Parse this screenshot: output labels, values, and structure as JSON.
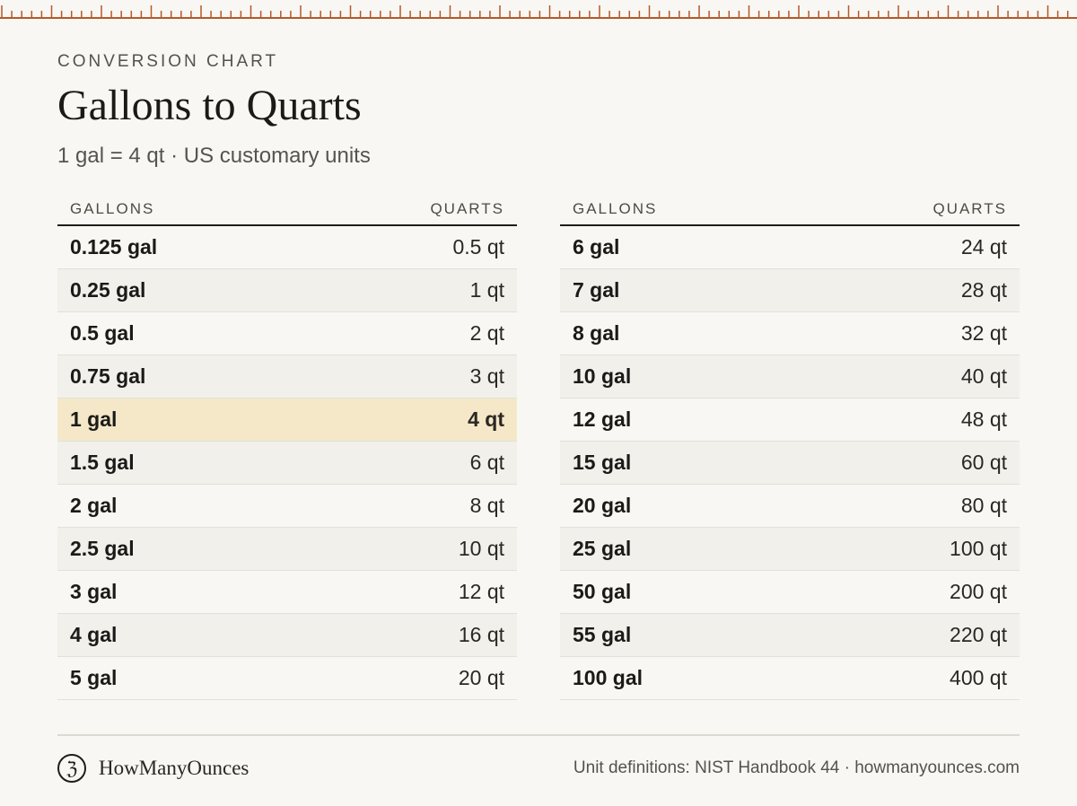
{
  "header": {
    "eyebrow": "CONVERSION CHART",
    "title": "Gallons to Quarts",
    "subtitle": "1 gal = 4 qt · US customary units"
  },
  "table": {
    "col_gallons": "GALLONS",
    "col_quarts": "QUARTS",
    "highlight_row": "1 gal",
    "left": [
      {
        "g": "0.125 gal",
        "q": "0.5 qt"
      },
      {
        "g": "0.25 gal",
        "q": "1 qt"
      },
      {
        "g": "0.5 gal",
        "q": "2 qt"
      },
      {
        "g": "0.75 gal",
        "q": "3 qt"
      },
      {
        "g": "1 gal",
        "q": "4 qt"
      },
      {
        "g": "1.5 gal",
        "q": "6 qt"
      },
      {
        "g": "2 gal",
        "q": "8 qt"
      },
      {
        "g": "2.5 gal",
        "q": "10 qt"
      },
      {
        "g": "3 gal",
        "q": "12 qt"
      },
      {
        "g": "4 gal",
        "q": "16 qt"
      },
      {
        "g": "5 gal",
        "q": "20 qt"
      }
    ],
    "right": [
      {
        "g": "6 gal",
        "q": "24 qt"
      },
      {
        "g": "7 gal",
        "q": "28 qt"
      },
      {
        "g": "8 gal",
        "q": "32 qt"
      },
      {
        "g": "10 gal",
        "q": "40 qt"
      },
      {
        "g": "12 gal",
        "q": "48 qt"
      },
      {
        "g": "15 gal",
        "q": "60 qt"
      },
      {
        "g": "20 gal",
        "q": "80 qt"
      },
      {
        "g": "25 gal",
        "q": "100 qt"
      },
      {
        "g": "50 gal",
        "q": "200 qt"
      },
      {
        "g": "55 gal",
        "q": "220 qt"
      },
      {
        "g": "100 gal",
        "q": "400 qt"
      }
    ]
  },
  "footer": {
    "logo_glyph": "ℨ",
    "brand": "HowManyOunces",
    "source": "Unit definitions: NIST Handbook 44 · howmanyounces.com"
  },
  "colors": {
    "accent": "#b5582a",
    "highlight": "#f4e8c9",
    "background": "#f8f7f3"
  }
}
